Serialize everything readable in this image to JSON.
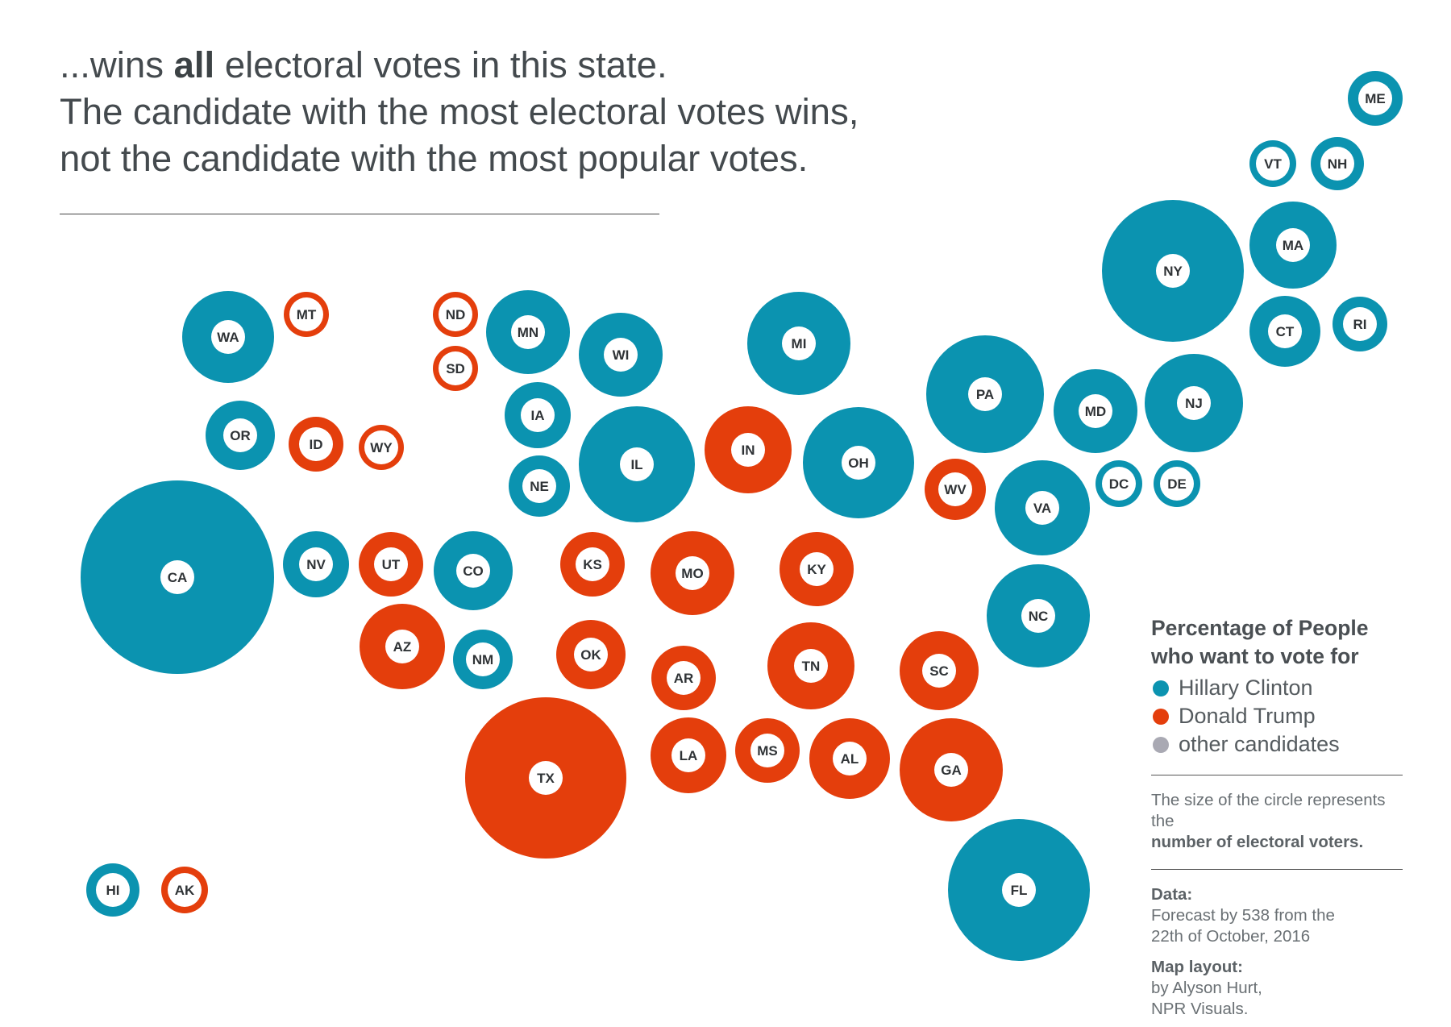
{
  "headline": {
    "line1_prefix": "...wins ",
    "line1_bold": "all",
    "line1_suffix": " electoral votes in this state.",
    "line2": "The candidate with the most electoral votes wins,",
    "line3": "not the candidate with the most popular votes."
  },
  "colors": {
    "clinton": "#0b93b0",
    "trump": "#e43e0c",
    "other": "#a9a9b3",
    "label_bg": "#ffffff",
    "label_text": "#2f3336"
  },
  "legend": {
    "title_line1": "Percentage of People",
    "title_line2": "who want to vote for",
    "items": [
      {
        "label": "Hillary Clinton",
        "color": "#0b93b0"
      },
      {
        "label": "Donald Trump",
        "color": "#e43e0c"
      },
      {
        "label": "other candidates",
        "color": "#a9a9b3"
      }
    ],
    "size_note_line1": "The size of the circle represents",
    "size_note_prefix": "the ",
    "size_note_bold": "number of electoral voters.",
    "data_label": "Data:",
    "data_line1": " Forecast by 538 from the",
    "data_line2": "22th of October, 2016",
    "layout_label": "Map layout:",
    "layout_line1": " by Alyson Hurt,",
    "layout_line2": "NPR Visuals."
  },
  "states": [
    {
      "abbr": "WA",
      "winner": "clinton"
    },
    {
      "abbr": "MT",
      "winner": "trump"
    },
    {
      "abbr": "ND",
      "winner": "trump"
    },
    {
      "abbr": "SD",
      "winner": "trump"
    },
    {
      "abbr": "MN",
      "winner": "clinton"
    },
    {
      "abbr": "WI",
      "winner": "clinton"
    },
    {
      "abbr": "MI",
      "winner": "clinton"
    },
    {
      "abbr": "OR",
      "winner": "clinton"
    },
    {
      "abbr": "ID",
      "winner": "trump"
    },
    {
      "abbr": "WY",
      "winner": "trump"
    },
    {
      "abbr": "IA",
      "winner": "clinton"
    },
    {
      "abbr": "NE",
      "winner": "clinton"
    },
    {
      "abbr": "IL",
      "winner": "clinton"
    },
    {
      "abbr": "IN",
      "winner": "trump"
    },
    {
      "abbr": "OH",
      "winner": "clinton"
    },
    {
      "abbr": "PA",
      "winner": "clinton"
    },
    {
      "abbr": "NY",
      "winner": "clinton"
    },
    {
      "abbr": "MA",
      "winner": "clinton"
    },
    {
      "abbr": "VT",
      "winner": "clinton"
    },
    {
      "abbr": "NH",
      "winner": "clinton"
    },
    {
      "abbr": "ME",
      "winner": "clinton"
    },
    {
      "abbr": "CT",
      "winner": "clinton"
    },
    {
      "abbr": "RI",
      "winner": "clinton"
    },
    {
      "abbr": "NJ",
      "winner": "clinton"
    },
    {
      "abbr": "MD",
      "winner": "clinton"
    },
    {
      "abbr": "DC",
      "winner": "clinton"
    },
    {
      "abbr": "DE",
      "winner": "clinton"
    },
    {
      "abbr": "WV",
      "winner": "trump"
    },
    {
      "abbr": "VA",
      "winner": "clinton"
    },
    {
      "abbr": "CA",
      "winner": "clinton"
    },
    {
      "abbr": "NV",
      "winner": "clinton"
    },
    {
      "abbr": "UT",
      "winner": "trump"
    },
    {
      "abbr": "CO",
      "winner": "clinton"
    },
    {
      "abbr": "KS",
      "winner": "trump"
    },
    {
      "abbr": "MO",
      "winner": "trump"
    },
    {
      "abbr": "KY",
      "winner": "trump"
    },
    {
      "abbr": "NC",
      "winner": "clinton"
    },
    {
      "abbr": "AZ",
      "winner": "trump"
    },
    {
      "abbr": "NM",
      "winner": "clinton"
    },
    {
      "abbr": "OK",
      "winner": "trump"
    },
    {
      "abbr": "AR",
      "winner": "trump"
    },
    {
      "abbr": "TN",
      "winner": "trump"
    },
    {
      "abbr": "SC",
      "winner": "trump"
    },
    {
      "abbr": "TX",
      "winner": "trump"
    },
    {
      "abbr": "LA",
      "winner": "trump"
    },
    {
      "abbr": "MS",
      "winner": "trump"
    },
    {
      "abbr": "AL",
      "winner": "trump"
    },
    {
      "abbr": "GA",
      "winner": "trump"
    },
    {
      "abbr": "FL",
      "winner": "clinton"
    },
    {
      "abbr": "HI",
      "winner": "clinton"
    },
    {
      "abbr": "AK",
      "winner": "trump"
    }
  ]
}
